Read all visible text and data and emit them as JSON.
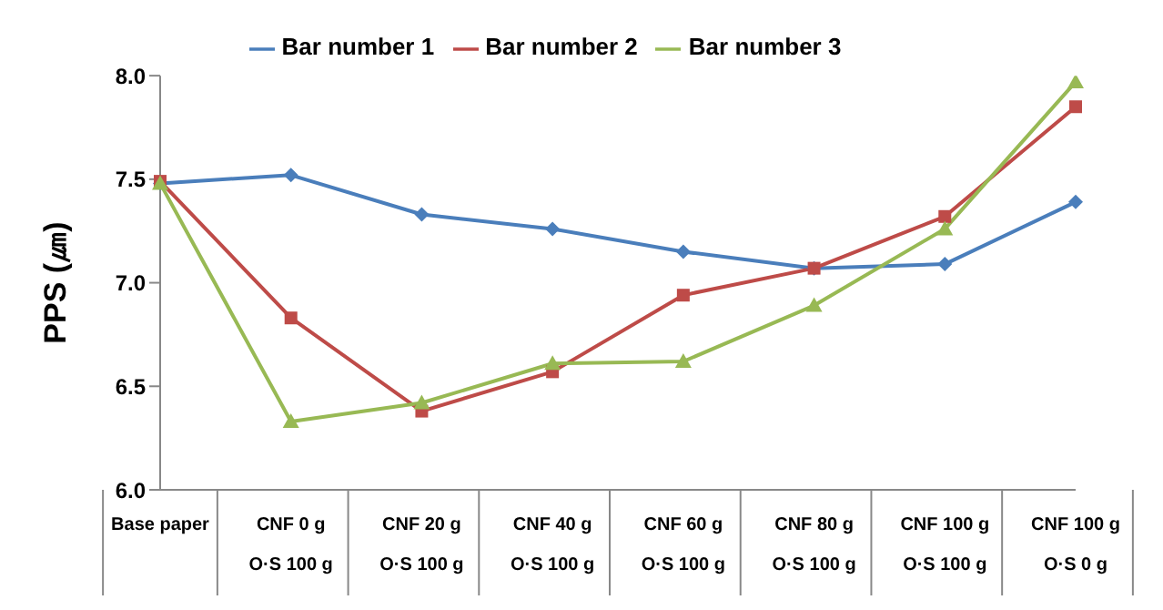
{
  "chart_data": {
    "type": "line",
    "ylabel": "PPS (㎛)",
    "categories": [
      "Base paper",
      "CNF 0 g\nO·S 100 g",
      "CNF 20 g\nO·S 100 g",
      "CNF 40 g\nO·S 100 g",
      "CNF 60 g\nO·S 100 g",
      "CNF 80 g\nO·S 100 g",
      "CNF 100 g\nO·S 100 g",
      "CNF 100 g\nO·S 0 g"
    ],
    "series": [
      {
        "name": "Bar number 1",
        "color": "#4a7ebb",
        "marker": "diamond",
        "values": [
          7.48,
          7.52,
          7.33,
          7.26,
          7.15,
          7.07,
          7.09,
          7.39
        ]
      },
      {
        "name": "Bar number 2",
        "color": "#be4b48",
        "marker": "square",
        "values": [
          7.49,
          6.83,
          6.38,
          6.57,
          6.94,
          7.07,
          7.32,
          7.85
        ]
      },
      {
        "name": "Bar number 3",
        "color": "#98b954",
        "marker": "triangle",
        "values": [
          7.48,
          6.33,
          6.42,
          6.61,
          6.62,
          6.89,
          7.26,
          7.97
        ]
      }
    ],
    "ylim": [
      6,
      8
    ],
    "yticks": [
      {
        "value": 6,
        "label": "6.0"
      },
      {
        "value": 6.5,
        "label": "6.5"
      },
      {
        "value": 7,
        "label": "7.0"
      },
      {
        "value": 7.5,
        "label": "7.5"
      },
      {
        "value": 8,
        "label": "8.0"
      }
    ],
    "grid": false,
    "legend": "top"
  }
}
